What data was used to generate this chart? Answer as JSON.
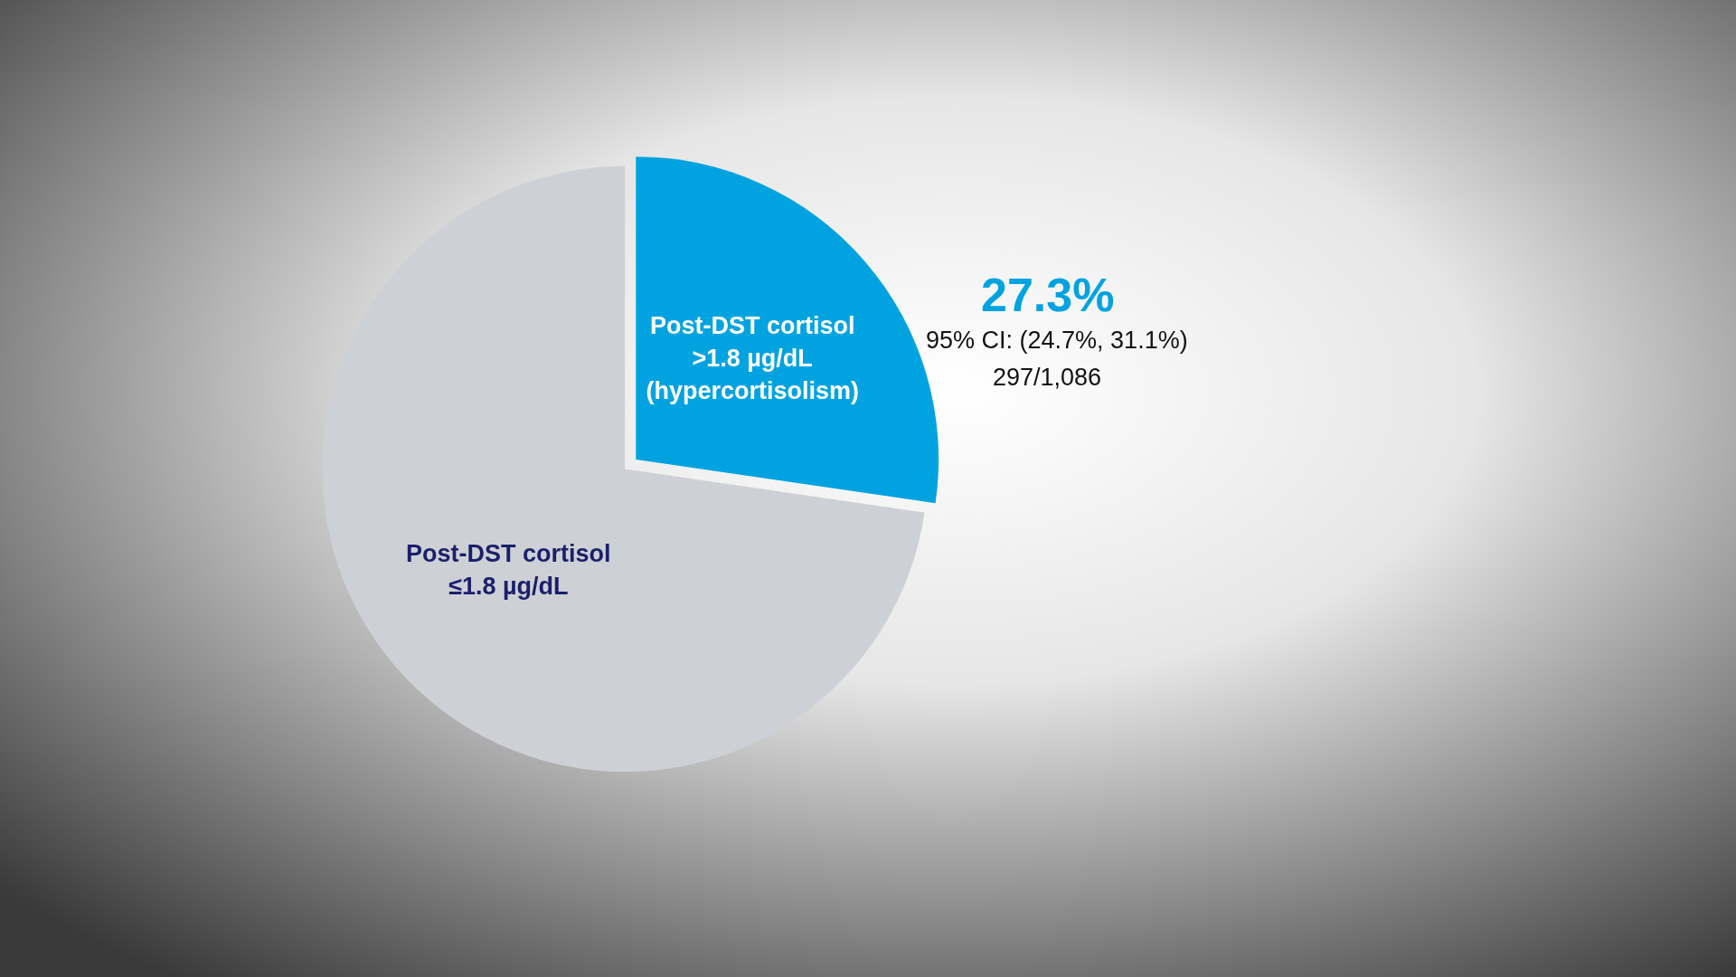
{
  "chart_data": {
    "type": "pie",
    "categories": [
      "Post-DST cortisol\n>1.8 µg/dL\n(hypercortisolism)",
      "Post-DST cortisol\n≤1.8 µg/dL"
    ],
    "values": [
      27.3,
      72.7
    ],
    "colors": [
      "#00a3e0",
      "#cdd1d5"
    ],
    "value_labels": [
      "27.3%",
      null
    ],
    "annotations": [
      "95% CI: (24.7%, 31.1%)",
      "297/1,086"
    ],
    "legend": false
  }
}
